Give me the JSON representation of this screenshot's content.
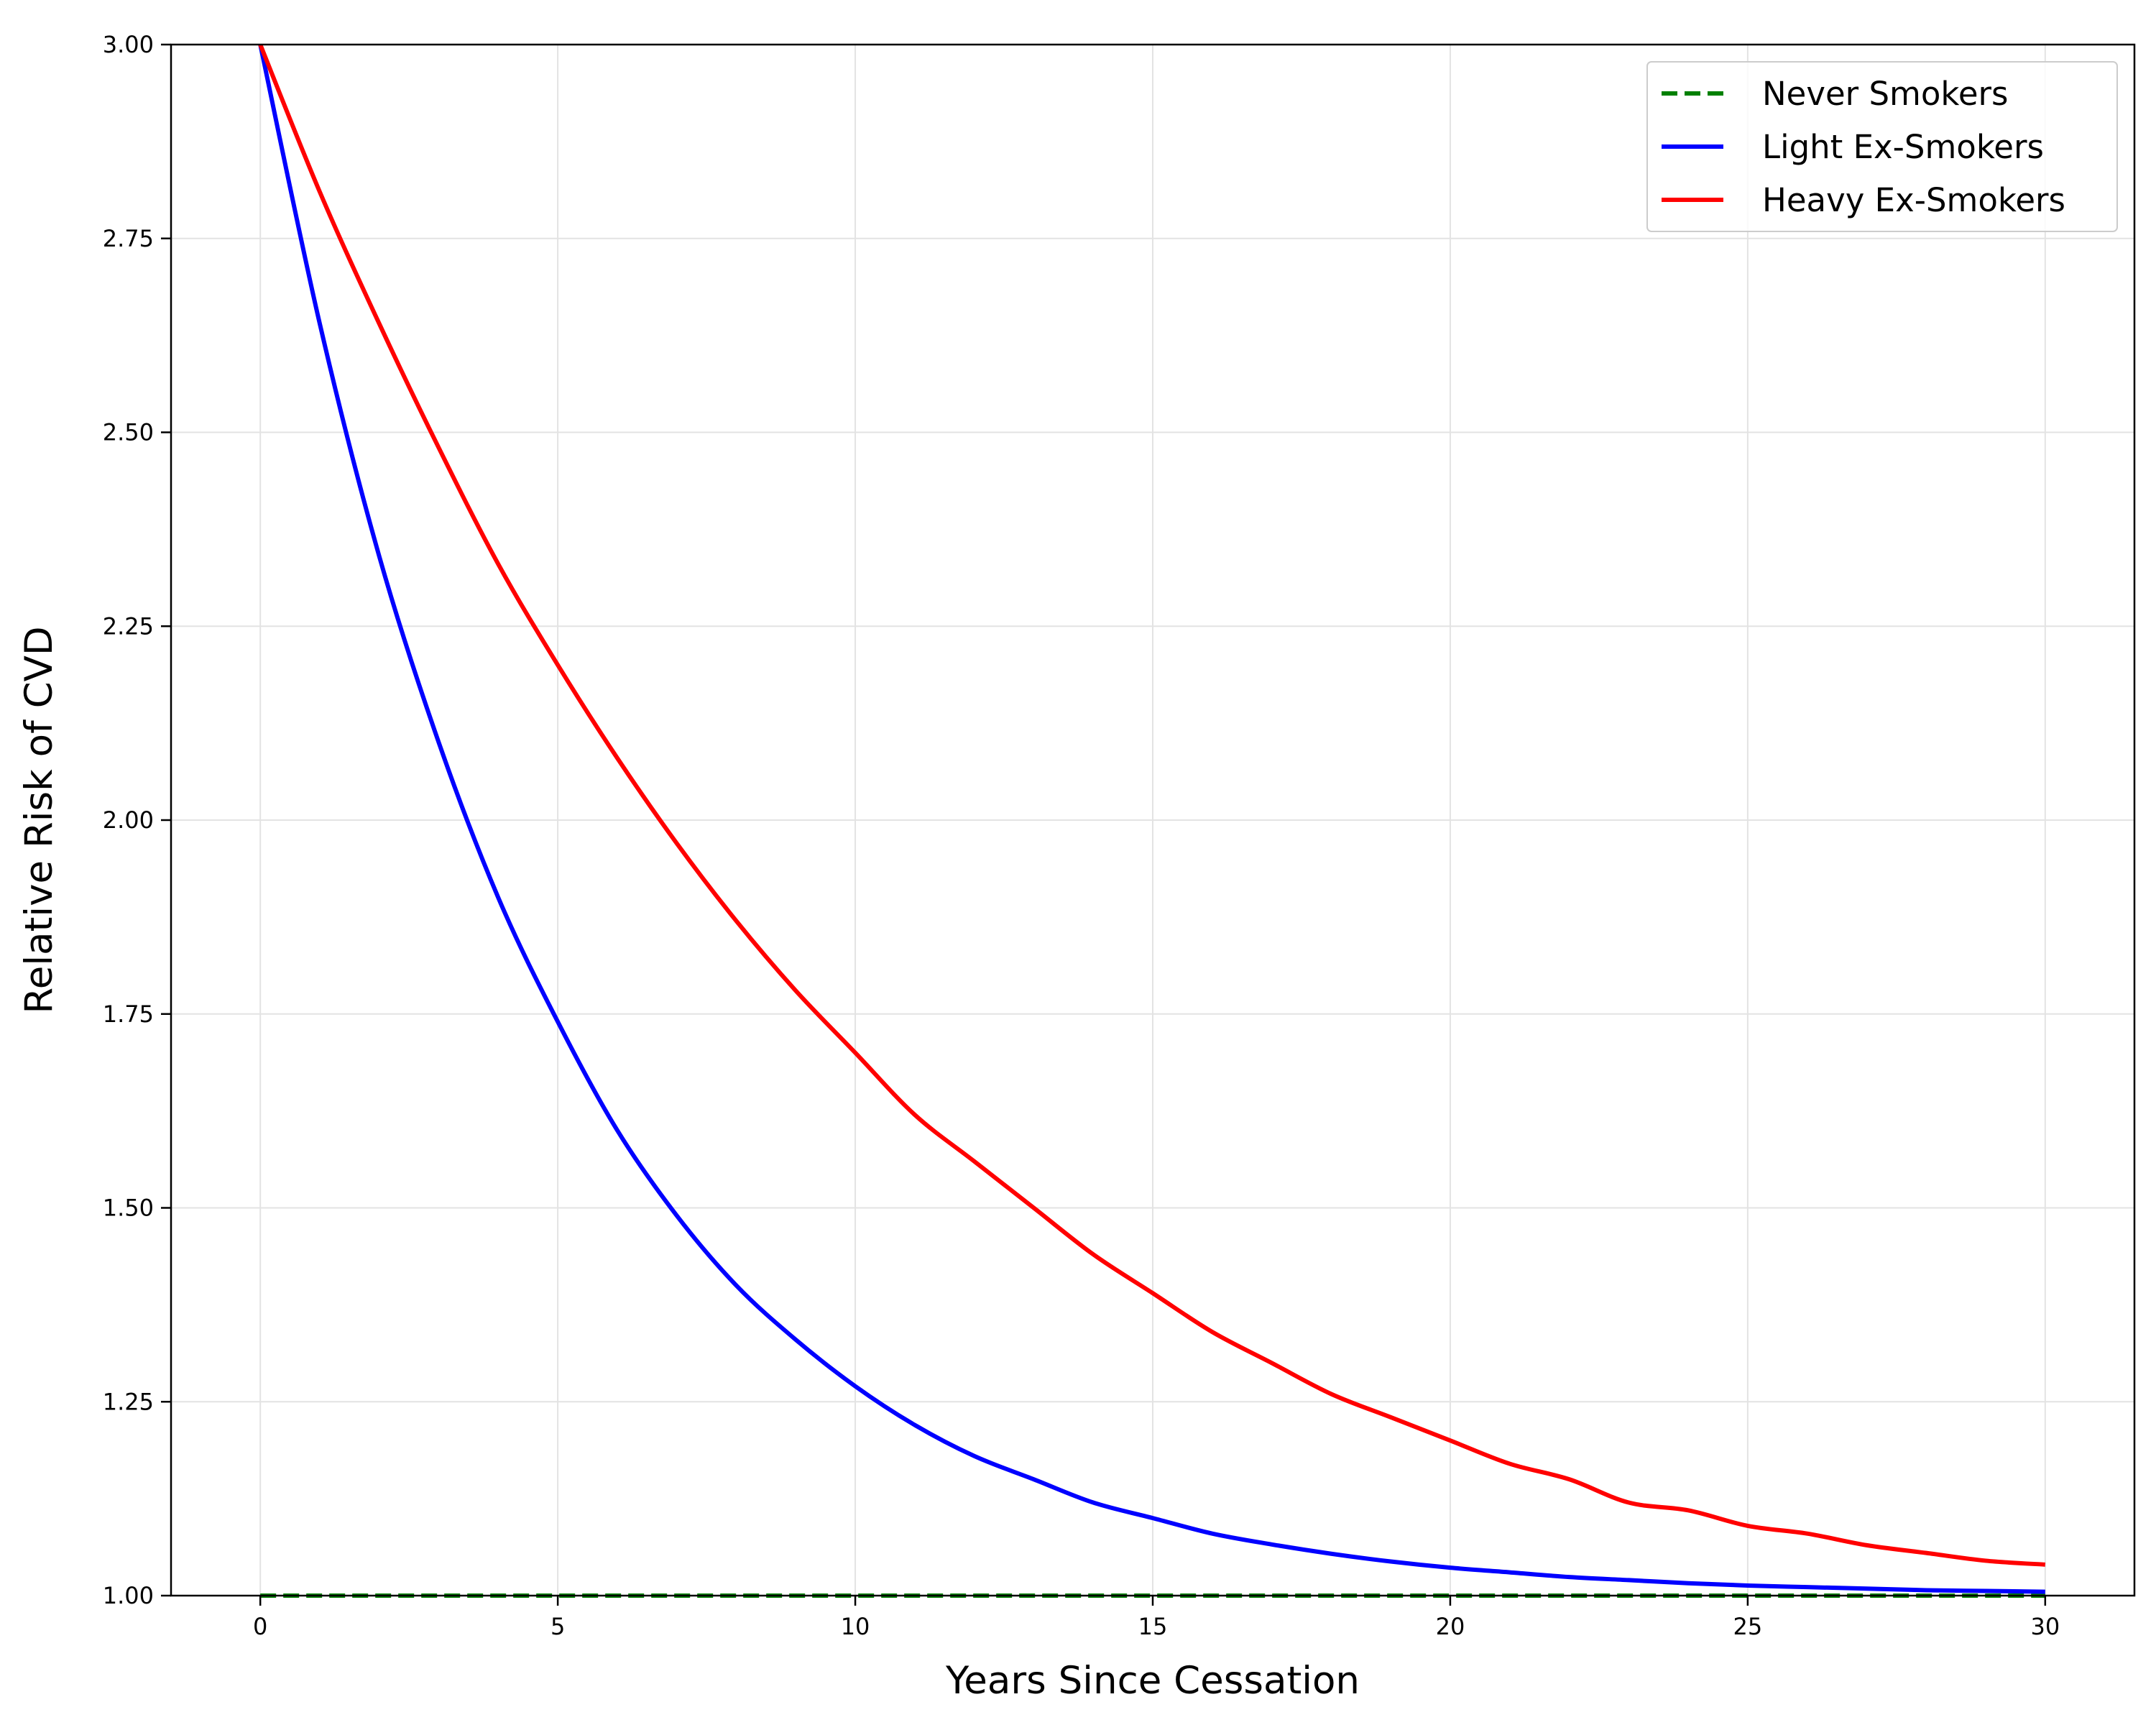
{
  "chart_data": {
    "type": "line",
    "title": "",
    "xlabel": "Years Since Cessation",
    "ylabel": "Relative Risk of CVD",
    "xlim": [
      -1.5,
      31.5
    ],
    "ylim": [
      1.0,
      3.0
    ],
    "xticks": [
      0,
      5,
      10,
      15,
      20,
      25,
      30
    ],
    "xtick_labels": [
      "0",
      "5",
      "10",
      "15",
      "20",
      "25",
      "30"
    ],
    "yticks": [
      1.0,
      1.25,
      1.5,
      1.75,
      2.0,
      2.25,
      2.5,
      2.75,
      3.0
    ],
    "ytick_labels": [
      "1.00",
      "1.25",
      "1.50",
      "1.75",
      "2.00",
      "2.25",
      "2.50",
      "2.75",
      "3.00"
    ],
    "grid": true,
    "legend_position": "top-right",
    "series": [
      {
        "name": "Never Smokers",
        "color": "#008000",
        "dash": "dashed",
        "x": [
          0,
          30
        ],
        "y": [
          1.0,
          1.0
        ]
      },
      {
        "name": "Light Ex-Smokers",
        "color": "#0000ff",
        "dash": "solid",
        "x": [
          0,
          1,
          2,
          3,
          4,
          5,
          6,
          7,
          8,
          9,
          10,
          11,
          12,
          13,
          14,
          15,
          16,
          17,
          18,
          19,
          20,
          21,
          22,
          23,
          24,
          25,
          26,
          27,
          28,
          29,
          30
        ],
        "y": [
          3.0,
          2.64,
          2.34,
          2.1,
          1.9,
          1.74,
          1.6,
          1.49,
          1.4,
          1.33,
          1.27,
          1.22,
          1.18,
          1.15,
          1.12,
          1.1,
          1.08,
          1.066,
          1.054,
          1.044,
          1.036,
          1.03,
          1.024,
          1.02,
          1.016,
          1.013,
          1.011,
          1.009,
          1.007,
          1.006,
          1.005
        ]
      },
      {
        "name": "Heavy Ex-Smokers",
        "color": "#ff0000",
        "dash": "solid",
        "x": [
          0,
          1,
          2,
          3,
          4,
          5,
          6,
          7,
          8,
          9,
          10,
          11,
          12,
          13,
          14,
          15,
          16,
          17,
          18,
          19,
          20,
          21,
          22,
          23,
          24,
          25,
          26,
          27,
          28,
          29,
          30
        ],
        "y": [
          3.0,
          2.81,
          2.64,
          2.48,
          2.33,
          2.2,
          2.08,
          1.97,
          1.87,
          1.78,
          1.7,
          1.62,
          1.56,
          1.5,
          1.44,
          1.39,
          1.34,
          1.3,
          1.26,
          1.23,
          1.2,
          1.17,
          1.15,
          1.12,
          1.11,
          1.09,
          1.08,
          1.065,
          1.055,
          1.045,
          1.04
        ]
      }
    ]
  }
}
